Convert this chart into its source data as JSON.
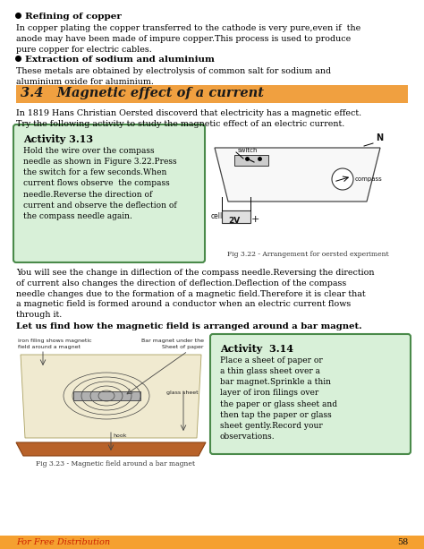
{
  "bg_color": "#ffffff",
  "page_width": 4.74,
  "page_height": 6.13,
  "section_header_color": "#f0a040",
  "footer_color": "#f5a030",
  "bullet_heading1": "Refining of copper",
  "bullet_text1": "In copper plating the copper transferred to the cathode is very pure,even if  the\nanode may have been made of impure copper.This process is used to produce\npure copper for electric cables.",
  "bullet_heading2": "Extraction of sodium and aluminium",
  "bullet_text2": "These metals are obtained by electrolysis of common salt for sodium and\naluminium oxide for aluminium.",
  "section_num": "3.4",
  "section_title": "Magnetic effect of a current",
  "intro_text": "In 1819 Hans Christian Oersted discoverd that electricity has a magnetic effect.\nTry the following activity to study the magnetic effect of an electric current.",
  "activity1_title": "Activity 3.13",
  "activity1_text": "Hold the wire over the compass\nneedle as shown in Figure 3.22.Press\nthe switch for a few seconds.When\ncurrent flows observe  the compass\nneedle.Reverse the direction of\ncurrent and observe the deflection of\nthe compass needle again.",
  "fig1_caption": "Fig 3.22 - Arrangement for oersted experiment",
  "middle_text": "You will see the change in diflection of the compass needle.Reversing the direction\nof current also changes the direction of deflection.Deflection of the compass\nneedle changes due to the formation of a magnetic field.Therefore it is clear that\na magnetic field is formed around a conductor when an electric current flows\nthrough it.",
  "bold_text": "Let us find how the magnetic field is arranged around a bar magnet.",
  "fig2_caption": "Fig 3.23 - Magnetic field around a bar magnet",
  "activity2_title": "Activity  3.14",
  "activity2_text": "Place a sheet of paper or\na thin glass sheet over a\nbar magnet.Sprinkle a thin\nlayer of iron filings over\nthe paper or glass sheet and\nthen tap the paper or glass\nsheet gently.Record your\nobservations.",
  "footer_text": "For Free Distribution",
  "page_number": "58"
}
